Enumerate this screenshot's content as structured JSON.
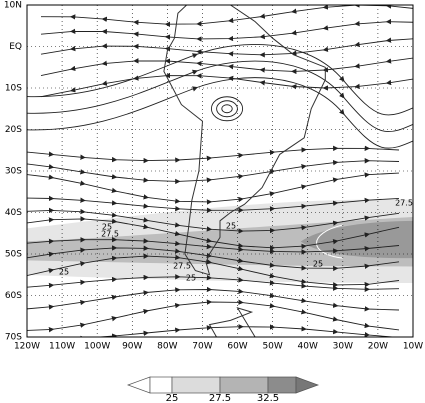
{
  "map": {
    "lat_labels": [
      "10N",
      "EQ",
      "10S",
      "20S",
      "30S",
      "40S",
      "50S",
      "60S",
      "70S"
    ],
    "lon_labels": [
      "120W",
      "110W",
      "100W",
      "90W",
      "80W",
      "70W",
      "60W",
      "50W",
      "40W",
      "30W",
      "20W",
      "10W"
    ],
    "contour_labels": [
      25,
      27.5,
      25,
      25,
      27.5,
      25,
      25,
      27.5
    ],
    "colorbar": {
      "ticks": [
        25,
        27.5,
        32.5
      ]
    }
  }
}
